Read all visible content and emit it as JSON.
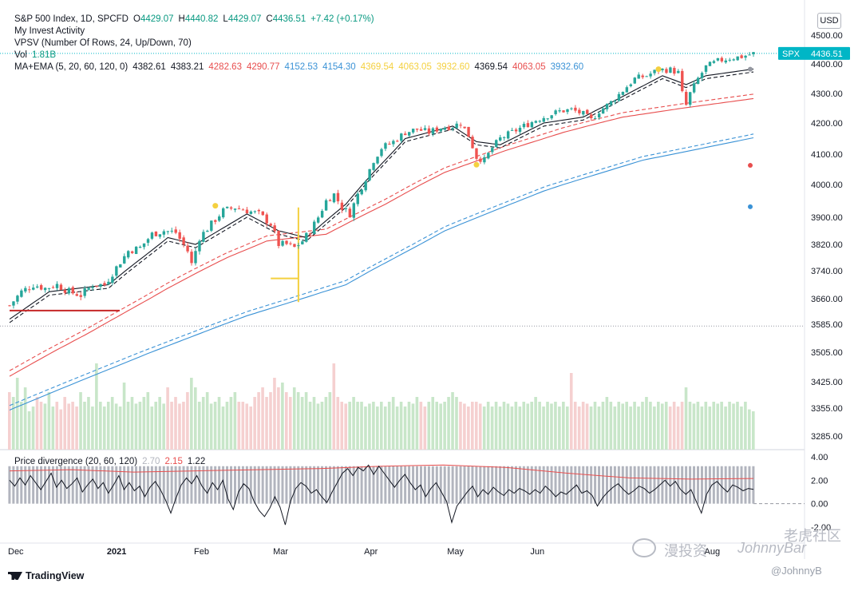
{
  "header": {
    "line1": {
      "symbol": "S&P 500 Index, 1D, SPCFD",
      "o_label": "O",
      "o_val": "4429.07",
      "h_label": "H",
      "h_val": "4440.82",
      "l_label": "L",
      "l_val": "4429.07",
      "c_label": "C",
      "c_val": "4436.51",
      "change": "+7.42 (+0.17%)"
    },
    "line2": "My Invest Activity",
    "line3": "VPSV (Number Of Rows, 24, Up/Down, 70)",
    "vol_label": "Vol",
    "vol_val": "1.81B",
    "ma_label": "MA+EMA (5, 20, 60, 120, 0)",
    "ma_values": [
      {
        "v": "4382.61",
        "color": "#131722"
      },
      {
        "v": "4383.21",
        "color": "#131722"
      },
      {
        "v": "4282.63",
        "color": "#e84e4e"
      },
      {
        "v": "4290.77",
        "color": "#e84e4e"
      },
      {
        "v": "4152.53",
        "color": "#3a92d6"
      },
      {
        "v": "4154.30",
        "color": "#3a92d6"
      },
      {
        "v": "4369.54",
        "color": "#f4d03f"
      },
      {
        "v": "4063.05",
        "color": "#f4d03f"
      },
      {
        "v": "3932.60",
        "color": "#f4d03f"
      },
      {
        "v": "4369.54",
        "color": "#131722"
      },
      {
        "v": "4063.05",
        "color": "#e84e4e"
      },
      {
        "v": "3932.60",
        "color": "#3a92d6"
      }
    ]
  },
  "currency_button": "USD",
  "price_tag": {
    "symbol": "SPX",
    "value": "4436.51"
  },
  "sub_panel": {
    "label": "Price divergence (20, 60, 120)",
    "values": [
      {
        "v": "2.70",
        "color": "#b2b5be"
      },
      {
        "v": "2.15",
        "color": "#e84e4e"
      },
      {
        "v": "1.22",
        "color": "#131722"
      }
    ]
  },
  "colors": {
    "up": "#26a69a",
    "down": "#ef5350",
    "ma5": "#131722",
    "ma20": "#e84e4e",
    "ma60": "#3a92d6",
    "marker": "#f4d03f",
    "tag_bg": "#00b6c6"
  },
  "footer": {
    "logo": "TradingView"
  },
  "watermark": {
    "left": "漫投资",
    "mid": "JohnnyBar",
    "right": "老虎社区",
    "handle": "@JohnnyB"
  },
  "chart_data": {
    "type": "candlestick",
    "symbol": "SPX",
    "y_ticks": [
      4500,
      4400,
      4300,
      4200,
      4100,
      4000,
      3900,
      3820,
      3740,
      3660,
      3585,
      3505,
      3425,
      3355,
      3285
    ],
    "y_tick_labels": [
      "4500.00",
      "4400.00",
      "4300.00",
      "4200.00",
      "4100.00",
      "4000.00",
      "3900.00",
      "3820.00",
      "3740.00",
      "3660.00",
      "3585.00",
      "3505.00",
      "3425.00",
      "3355.00",
      "3285.00"
    ],
    "x_labels": [
      {
        "label": "Dec",
        "day": 0
      },
      {
        "label": "2021",
        "day": 25
      },
      {
        "label": "Feb",
        "day": 47
      },
      {
        "label": "Mar",
        "day": 67
      },
      {
        "label": "Apr",
        "day": 90
      },
      {
        "label": "May",
        "day": 111
      },
      {
        "label": "Jun",
        "day": 132
      },
      {
        "label": "Aug",
        "day": 176
      }
    ],
    "price_path": [
      [
        0,
        3640
      ],
      [
        3,
        3680
      ],
      [
        6,
        3700
      ],
      [
        9,
        3690
      ],
      [
        12,
        3700
      ],
      [
        15,
        3680
      ],
      [
        18,
        3670
      ],
      [
        21,
        3700
      ],
      [
        24,
        3700
      ],
      [
        27,
        3750
      ],
      [
        30,
        3800
      ],
      [
        33,
        3810
      ],
      [
        36,
        3850
      ],
      [
        39,
        3860
      ],
      [
        42,
        3855
      ],
      [
        45,
        3800
      ],
      [
        46,
        3760
      ],
      [
        48,
        3840
      ],
      [
        51,
        3880
      ],
      [
        54,
        3920
      ],
      [
        57,
        3930
      ],
      [
        60,
        3920
      ],
      [
        63,
        3910
      ],
      [
        66,
        3880
      ],
      [
        68,
        3820
      ],
      [
        70,
        3820
      ],
      [
        72,
        3810
      ],
      [
        74,
        3830
      ],
      [
        76,
        3860
      ],
      [
        78,
        3900
      ],
      [
        80,
        3950
      ],
      [
        82,
        3970
      ],
      [
        84,
        3930
      ],
      [
        86,
        3910
      ],
      [
        88,
        3970
      ],
      [
        90,
        4020
      ],
      [
        92,
        4080
      ],
      [
        94,
        4120
      ],
      [
        97,
        4140
      ],
      [
        100,
        4170
      ],
      [
        103,
        4180
      ],
      [
        106,
        4170
      ],
      [
        109,
        4185
      ],
      [
        112,
        4190
      ],
      [
        114,
        4200
      ],
      [
        116,
        4160
      ],
      [
        118,
        4090
      ],
      [
        120,
        4080
      ],
      [
        122,
        4120
      ],
      [
        124,
        4150
      ],
      [
        127,
        4170
      ],
      [
        130,
        4190
      ],
      [
        133,
        4210
      ],
      [
        136,
        4225
      ],
      [
        139,
        4240
      ],
      [
        142,
        4245
      ],
      [
        145,
        4230
      ],
      [
        147,
        4210
      ],
      [
        149,
        4240
      ],
      [
        152,
        4270
      ],
      [
        155,
        4310
      ],
      [
        158,
        4350
      ],
      [
        161,
        4360
      ],
      [
        164,
        4380
      ],
      [
        167,
        4380
      ],
      [
        169,
        4370
      ],
      [
        170,
        4300
      ],
      [
        171,
        4260
      ],
      [
        172,
        4300
      ],
      [
        174,
        4350
      ],
      [
        176,
        4390
      ],
      [
        179,
        4410
      ],
      [
        182,
        4420
      ],
      [
        185,
        4425
      ],
      [
        188,
        4436.51
      ]
    ],
    "ma5": [
      [
        0,
        3600
      ],
      [
        10,
        3680
      ],
      [
        25,
        3700
      ],
      [
        40,
        3840
      ],
      [
        47,
        3820
      ],
      [
        60,
        3910
      ],
      [
        68,
        3860
      ],
      [
        75,
        3840
      ],
      [
        85,
        3940
      ],
      [
        92,
        4040
      ],
      [
        100,
        4150
      ],
      [
        112,
        4190
      ],
      [
        118,
        4140
      ],
      [
        124,
        4130
      ],
      [
        135,
        4200
      ],
      [
        145,
        4220
      ],
      [
        155,
        4290
      ],
      [
        165,
        4360
      ],
      [
        171,
        4330
      ],
      [
        176,
        4360
      ],
      [
        188,
        4382.61
      ]
    ],
    "ma20": [
      [
        0,
        3440
      ],
      [
        20,
        3560
      ],
      [
        40,
        3690
      ],
      [
        55,
        3780
      ],
      [
        65,
        3830
      ],
      [
        80,
        3850
      ],
      [
        95,
        3940
      ],
      [
        110,
        4040
      ],
      [
        125,
        4110
      ],
      [
        140,
        4170
      ],
      [
        155,
        4220
      ],
      [
        170,
        4250
      ],
      [
        188,
        4282.63
      ]
    ],
    "ma60": [
      [
        0,
        3350
      ],
      [
        30,
        3480
      ],
      [
        60,
        3610
      ],
      [
        85,
        3700
      ],
      [
        110,
        3860
      ],
      [
        135,
        3980
      ],
      [
        160,
        4080
      ],
      [
        188,
        4152.53
      ]
    ],
    "volume": [
      0.6,
      0.55,
      0.75,
      0.5,
      0.65,
      0.4,
      0.45,
      0.55,
      0.5,
      0.48,
      0.6,
      0.45,
      0.5,
      0.42,
      0.55,
      0.48,
      0.5,
      0.45,
      0.6,
      0.5,
      0.55,
      0.45,
      0.9,
      0.5,
      0.45,
      0.5,
      0.55,
      0.48,
      0.45,
      0.7,
      0.5,
      0.55,
      0.48,
      0.5,
      0.55,
      0.6,
      0.45,
      0.5,
      0.55,
      0.48,
      0.65,
      0.5,
      0.55,
      0.48,
      0.5,
      0.6,
      0.75,
      0.65,
      0.5,
      0.55,
      0.6,
      0.48,
      0.5,
      0.55,
      0.45,
      0.5,
      0.55,
      0.6,
      0.5,
      0.5,
      0.48,
      0.45,
      0.55,
      0.6,
      0.65,
      0.55,
      0.6,
      0.75,
      0.65,
      0.7,
      0.6,
      0.55,
      0.65,
      0.6,
      0.55,
      0.6,
      0.5,
      0.55,
      0.48,
      0.5,
      0.55,
      0.6,
      0.9,
      0.55,
      0.5,
      0.48,
      0.5,
      0.55,
      0.5,
      0.5,
      0.45,
      0.48,
      0.5,
      0.45,
      0.5,
      0.45,
      0.5,
      0.55,
      0.45,
      0.5,
      0.45,
      0.5,
      0.48,
      0.55,
      0.5,
      0.45,
      0.5,
      0.55,
      0.5,
      0.48,
      0.5,
      0.55,
      0.6,
      0.55,
      0.5,
      0.48,
      0.45,
      0.5,
      0.5,
      0.48,
      0.45,
      0.5,
      0.45,
      0.5,
      0.45,
      0.5,
      0.48,
      0.45,
      0.5,
      0.45,
      0.5,
      0.48,
      0.5,
      0.55,
      0.5,
      0.45,
      0.5,
      0.48,
      0.5,
      0.45,
      0.5,
      0.45,
      0.8,
      0.5,
      0.45,
      0.5,
      0.48,
      0.45,
      0.5,
      0.45,
      0.5,
      0.55,
      0.5,
      0.45,
      0.5,
      0.48,
      0.5,
      0.45,
      0.5,
      0.45,
      0.5,
      0.55,
      0.5,
      0.45,
      0.5,
      0.48,
      0.5,
      0.45,
      0.5,
      0.45,
      0.5,
      0.65,
      0.5,
      0.48,
      0.5,
      0.45,
      0.5,
      0.45,
      0.5,
      0.48,
      0.5,
      0.45,
      0.5,
      0.48,
      0.5,
      0.45,
      0.5,
      0.42,
      0.4
    ],
    "divergence_line": [
      2.0,
      1.5,
      2.2,
      1.6,
      2.4,
      1.8,
      1.2,
      1.9,
      2.6,
      1.4,
      2.0,
      1.3,
      1.7,
      2.2,
      1.0,
      1.6,
      2.1,
      1.3,
      1.8,
      0.9,
      1.6,
      2.4,
      1.2,
      1.8,
      1.1,
      1.5,
      0.6,
      1.4,
      1.9,
      1.2,
      0.3,
      -0.8,
      0.5,
      1.6,
      2.2,
      1.7,
      2.4,
      1.5,
      0.9,
      1.8,
      1.2,
      2.0,
      0.4,
      -0.5,
      1.0,
      1.7,
      1.3,
      0.2,
      -0.6,
      -1.1,
      -0.4,
      0.6,
      -0.3,
      -1.8,
      0.2,
      1.3,
      1.8,
      1.5,
      0.9,
      1.2,
      0.6,
      0.1,
      1.0,
      1.8,
      2.6,
      3.0,
      2.4,
      3.1,
      2.8,
      3.3,
      2.5,
      3.2,
      2.6,
      2.0,
      1.4,
      2.0,
      2.5,
      1.8,
      1.2,
      1.6,
      0.6,
      1.3,
      1.8,
      1.0,
      0.2,
      -1.6,
      -0.2,
      0.4,
      1.0,
      1.5,
      0.6,
      1.2,
      0.8,
      1.4,
      1.0,
      0.7,
      1.2,
      0.9,
      1.3,
      1.1,
      0.8,
      1.2,
      0.9,
      1.5,
      1.1,
      0.6,
      1.0,
      0.8,
      1.2,
      1.6,
      0.9,
      1.1,
      0.7,
      -0.2,
      0.5,
      1.0,
      1.4,
      1.7,
      1.2,
      0.8,
      1.1,
      1.5,
      1.3,
      0.9,
      1.2,
      1.6,
      2.0,
      1.5,
      1.9,
      1.2,
      0.8,
      1.2,
      0.2,
      -0.8,
      0.8,
      1.6,
      1.9,
      1.4,
      1.0,
      1.6,
      1.4,
      1.1,
      1.3,
      1.22
    ],
    "divergence_range": [
      -2.0,
      4.0
    ],
    "divergence_ticks": [
      "4.00",
      "2.00",
      "0.00",
      "-2.00"
    ]
  }
}
